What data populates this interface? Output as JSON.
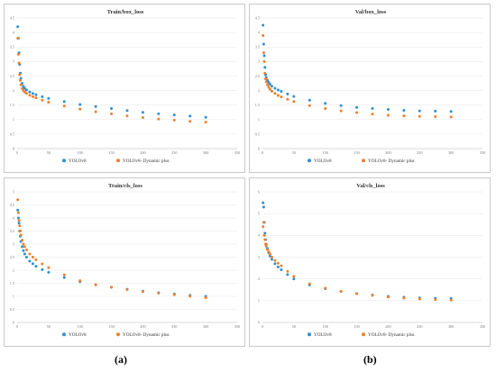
{
  "colors": {
    "yolov8": "#2f8fd1",
    "dynamic": "#f07f2c"
  },
  "captions": [
    "(a)",
    "(b)"
  ],
  "chart_data": [
    {
      "type": "scatter",
      "title": "Train/box_loss",
      "xlim": [
        0,
        350
      ],
      "ylim": [
        0,
        4.5
      ],
      "xticks": [
        0,
        50,
        100,
        150,
        200,
        250,
        300,
        350
      ],
      "yticks": [
        0,
        0.5,
        1,
        1.5,
        2,
        2.5,
        3,
        3.5,
        4,
        4.5
      ],
      "legend_position": "bottom",
      "series": [
        {
          "name": "YOLOv8",
          "x": [
            1,
            2,
            3,
            4,
            5,
            6,
            8,
            10,
            12,
            15,
            20,
            25,
            30,
            40,
            50,
            75,
            100,
            125,
            150,
            175,
            200,
            225,
            250,
            275,
            300
          ],
          "y": [
            4.2,
            3.8,
            3.3,
            2.9,
            2.6,
            2.42,
            2.25,
            2.15,
            2.08,
            2.02,
            1.95,
            1.9,
            1.86,
            1.79,
            1.73,
            1.62,
            1.52,
            1.45,
            1.38,
            1.31,
            1.25,
            1.2,
            1.16,
            1.12,
            1.08
          ]
        },
        {
          "name": "YOLOv8- Dynamic plus",
          "x": [
            1,
            2,
            3,
            4,
            5,
            6,
            8,
            10,
            12,
            15,
            20,
            25,
            30,
            40,
            50,
            75,
            100,
            125,
            150,
            175,
            200,
            225,
            250,
            275,
            300
          ],
          "y": [
            3.8,
            3.25,
            2.95,
            2.55,
            2.35,
            2.2,
            2.07,
            2.0,
            1.95,
            1.9,
            1.84,
            1.79,
            1.75,
            1.67,
            1.6,
            1.47,
            1.36,
            1.27,
            1.2,
            1.13,
            1.07,
            1.02,
            0.98,
            0.94,
            0.91
          ]
        }
      ]
    },
    {
      "type": "scatter",
      "title": "Val/box_loss",
      "xlim": [
        0,
        350
      ],
      "ylim": [
        0,
        4.5
      ],
      "xticks": [
        0,
        50,
        100,
        150,
        200,
        250,
        300,
        350
      ],
      "yticks": [
        0,
        0.5,
        1,
        1.5,
        2,
        2.5,
        3,
        3.5,
        4,
        4.5
      ],
      "legend_position": "bottom",
      "series": [
        {
          "name": "YOLOv8",
          "x": [
            1,
            2,
            3,
            4,
            5,
            6,
            8,
            10,
            12,
            15,
            20,
            25,
            30,
            40,
            50,
            75,
            100,
            125,
            150,
            175,
            200,
            225,
            250,
            275,
            300
          ],
          "y": [
            4.25,
            3.6,
            3.2,
            2.8,
            2.55,
            2.45,
            2.35,
            2.28,
            2.22,
            2.15,
            2.08,
            2.02,
            1.97,
            1.88,
            1.8,
            1.67,
            1.56,
            1.48,
            1.42,
            1.38,
            1.35,
            1.32,
            1.3,
            1.29,
            1.28
          ]
        },
        {
          "name": "YOLOv8- Dynamic plus",
          "x": [
            1,
            2,
            3,
            4,
            5,
            6,
            8,
            10,
            12,
            15,
            20,
            25,
            30,
            40,
            50,
            75,
            100,
            125,
            150,
            175,
            200,
            225,
            250,
            275,
            300
          ],
          "y": [
            3.9,
            3.3,
            3.0,
            2.6,
            2.4,
            2.3,
            2.2,
            2.12,
            2.05,
            1.98,
            1.9,
            1.83,
            1.78,
            1.7,
            1.62,
            1.48,
            1.38,
            1.3,
            1.24,
            1.19,
            1.15,
            1.13,
            1.11,
            1.1,
            1.09
          ]
        }
      ]
    },
    {
      "type": "scatter",
      "title": "Train/cls_loss",
      "xlim": [
        0,
        350
      ],
      "ylim": [
        0,
        5
      ],
      "xticks": [
        0,
        50,
        100,
        150,
        200,
        250,
        300,
        350
      ],
      "yticks": [
        0,
        0.5,
        1,
        1.5,
        2,
        2.5,
        3,
        3.5,
        4,
        4.5,
        5
      ],
      "legend_position": "bottom",
      "series": [
        {
          "name": "YOLOv8",
          "x": [
            1,
            2,
            3,
            4,
            5,
            6,
            8,
            10,
            12,
            15,
            20,
            25,
            30,
            40,
            50,
            75,
            100,
            125,
            150,
            175,
            200,
            225,
            250,
            275,
            300
          ],
          "y": [
            4.3,
            4.0,
            3.8,
            3.5,
            3.3,
            3.1,
            2.9,
            2.75,
            2.62,
            2.5,
            2.35,
            2.25,
            2.15,
            2.02,
            1.92,
            1.72,
            1.56,
            1.44,
            1.35,
            1.27,
            1.2,
            1.14,
            1.09,
            1.04,
            1.0
          ]
        },
        {
          "name": "YOLOv8- Dynamic plus",
          "x": [
            1,
            2,
            3,
            4,
            5,
            6,
            8,
            10,
            12,
            15,
            20,
            25,
            30,
            40,
            50,
            75,
            100,
            125,
            150,
            175,
            200,
            225,
            250,
            275,
            300
          ],
          "y": [
            4.7,
            4.2,
            3.9,
            3.7,
            3.5,
            3.35,
            3.15,
            3.0,
            2.9,
            2.78,
            2.62,
            2.5,
            2.4,
            2.24,
            2.1,
            1.82,
            1.6,
            1.45,
            1.35,
            1.26,
            1.18,
            1.12,
            1.06,
            1.01,
            0.95
          ]
        }
      ]
    },
    {
      "type": "scatter",
      "title": "Val/cls_loss",
      "xlim": [
        0,
        350
      ],
      "ylim": [
        0,
        6
      ],
      "xticks": [
        0,
        50,
        100,
        150,
        200,
        250,
        300,
        350
      ],
      "yticks": [
        0,
        1,
        2,
        3,
        4,
        5,
        6
      ],
      "legend_position": "bottom",
      "series": [
        {
          "name": "YOLOv8",
          "x": [
            1,
            2,
            3,
            4,
            5,
            6,
            8,
            10,
            12,
            15,
            20,
            25,
            30,
            40,
            50,
            75,
            100,
            125,
            150,
            175,
            200,
            225,
            250,
            275,
            300
          ],
          "y": [
            5.5,
            5.3,
            4.6,
            4.1,
            3.8,
            3.6,
            3.4,
            3.2,
            3.05,
            2.9,
            2.7,
            2.55,
            2.42,
            2.2,
            2.0,
            1.72,
            1.55,
            1.42,
            1.33,
            1.26,
            1.2,
            1.16,
            1.13,
            1.11,
            1.1
          ]
        },
        {
          "name": "YOLOv8- Dynamic plus",
          "x": [
            1,
            2,
            3,
            4,
            5,
            6,
            8,
            10,
            12,
            15,
            20,
            25,
            30,
            40,
            50,
            75,
            100,
            125,
            150,
            175,
            200,
            225,
            250,
            275,
            300
          ],
          "y": [
            4.4,
            4.6,
            4.0,
            3.8,
            3.6,
            3.5,
            3.35,
            3.25,
            3.15,
            3.0,
            2.85,
            2.72,
            2.6,
            2.35,
            2.12,
            1.78,
            1.58,
            1.43,
            1.32,
            1.24,
            1.17,
            1.12,
            1.08,
            1.05,
            1.03
          ]
        }
      ]
    }
  ]
}
